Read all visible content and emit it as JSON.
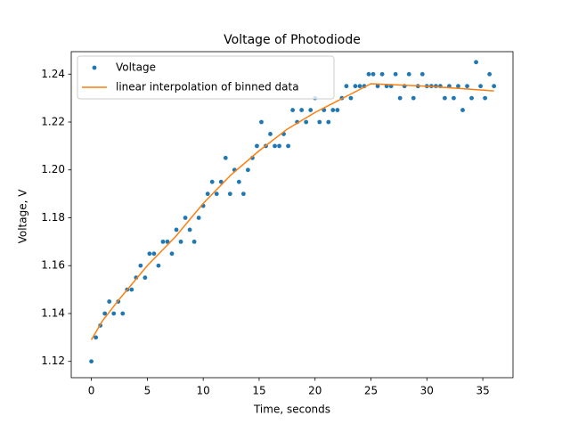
{
  "chart_data": {
    "type": "scatter",
    "title": "Voltage of Photodiode",
    "x_label": "Time, seconds",
    "y_label": "Voltage, V",
    "xlim": [
      -1.8,
      37.7
    ],
    "ylim": [
      1.1132,
      1.2494
    ],
    "xticks": [
      0,
      5,
      10,
      15,
      20,
      25,
      30,
      35
    ],
    "yticks": [
      1.12,
      1.14,
      1.16,
      1.18,
      {
        "value": 1.2,
        "label": "1.20"
      },
      1.22,
      1.24
    ],
    "legend": "upper left",
    "series": [
      {
        "name": "Voltage",
        "type": "scatter",
        "color": "#1f77b4",
        "x": [
          0,
          0.4,
          0.8,
          1.2,
          1.6,
          2.0,
          2.4,
          2.8,
          3.2,
          3.6,
          4.0,
          4.4,
          4.8,
          5.2,
          5.6,
          6.0,
          6.4,
          6.8,
          7.2,
          7.6,
          8.0,
          8.4,
          8.8,
          9.2,
          9.6,
          10.0,
          10.4,
          10.8,
          11.2,
          11.6,
          12.0,
          12.4,
          12.8,
          13.2,
          13.6,
          14.0,
          14.4,
          14.8,
          15.2,
          15.6,
          16.0,
          16.4,
          16.8,
          17.2,
          17.6,
          18.0,
          18.4,
          18.8,
          19.2,
          19.6,
          20.0,
          20.4,
          20.8,
          21.2,
          21.6,
          22.0,
          22.4,
          22.8,
          23.2,
          23.6,
          24.0,
          24.4,
          24.8,
          25.2,
          25.6,
          26.0,
          26.4,
          26.8,
          27.2,
          27.6,
          28.0,
          28.4,
          28.8,
          29.2,
          29.6,
          30.0,
          30.4,
          30.8,
          31.2,
          31.6,
          32.0,
          32.4,
          32.8,
          33.2,
          33.6,
          34.0,
          34.4,
          34.8,
          35.2,
          35.6,
          36.0
        ],
        "values": [
          1.12,
          1.13,
          1.135,
          1.14,
          1.145,
          1.14,
          1.145,
          1.14,
          1.15,
          1.15,
          1.155,
          1.16,
          1.155,
          1.165,
          1.165,
          1.16,
          1.17,
          1.17,
          1.165,
          1.175,
          1.17,
          1.18,
          1.175,
          1.17,
          1.18,
          1.185,
          1.19,
          1.195,
          1.19,
          1.195,
          1.205,
          1.19,
          1.2,
          1.195,
          1.19,
          1.2,
          1.205,
          1.21,
          1.22,
          1.21,
          1.215,
          1.21,
          1.21,
          1.215,
          1.21,
          1.225,
          1.22,
          1.225,
          1.22,
          1.225,
          1.23,
          1.22,
          1.225,
          1.22,
          1.225,
          1.225,
          1.23,
          1.235,
          1.23,
          1.235,
          1.235,
          1.235,
          1.24,
          1.24,
          1.235,
          1.24,
          1.235,
          1.235,
          1.24,
          1.23,
          1.235,
          1.24,
          1.23,
          1.235,
          1.24,
          1.235,
          1.235,
          1.235,
          1.235,
          1.23,
          1.235,
          1.23,
          1.235,
          1.225,
          1.235,
          1.23,
          1.245,
          1.235,
          1.23,
          1.24,
          1.235
        ]
      },
      {
        "name": "linear interpolation of binned data",
        "type": "line",
        "color": "#ff7f0e",
        "x": [
          0,
          1,
          2.5,
          5,
          7.5,
          10,
          12.5,
          15,
          17.5,
          20,
          22.5,
          25,
          30,
          36
        ],
        "values": [
          1.129,
          1.137,
          1.146,
          1.16,
          1.172,
          1.186,
          1.198,
          1.208,
          1.217,
          1.224,
          1.23,
          1.236,
          1.235,
          1.233
        ]
      }
    ]
  }
}
